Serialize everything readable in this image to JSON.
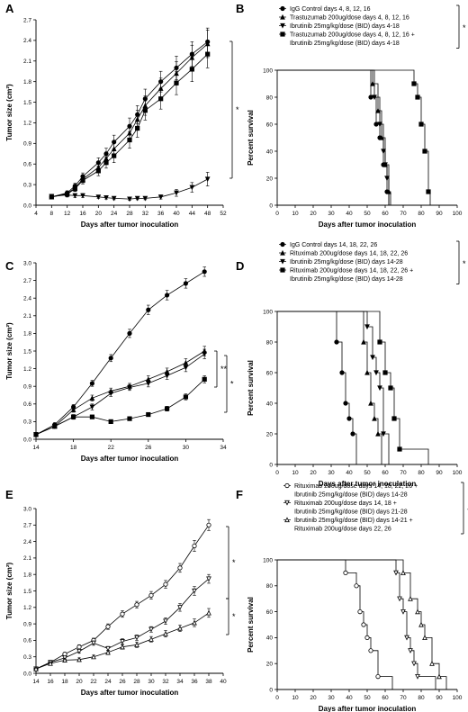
{
  "figure": {
    "panel_letters": [
      "A",
      "B",
      "C",
      "D",
      "E",
      "F"
    ]
  },
  "chart_data": [
    {
      "panel": "A",
      "type": "line",
      "xlabel": "Days after tumor inoculation",
      "ylabel": "Tumor size (cm²)",
      "xlim": [
        4,
        52
      ],
      "ylim": [
        0,
        2.7
      ],
      "xticks": [
        "4",
        "8",
        "12",
        "16",
        "20",
        "24",
        "28",
        "32",
        "36",
        "40",
        "44",
        "48",
        "52"
      ],
      "yticks": [
        "0.0",
        "0.3",
        "0.6",
        "0.9",
        "1.2",
        "1.5",
        "1.8",
        "2.1",
        "2.4",
        "2.7"
      ],
      "x": [
        8,
        12,
        14,
        16,
        20,
        22,
        24,
        28,
        30,
        32,
        36,
        40,
        44,
        48
      ],
      "series": [
        {
          "marker": "circle",
          "values": [
            0.12,
            0.18,
            0.28,
            0.42,
            0.62,
            0.75,
            0.92,
            1.15,
            1.32,
            1.55,
            1.8,
            2.0,
            2.2,
            2.38
          ],
          "err": [
            0.02,
            0.03,
            0.04,
            0.05,
            0.07,
            0.08,
            0.1,
            0.12,
            0.13,
            0.14,
            0.15,
            0.17,
            0.18,
            0.2
          ]
        },
        {
          "marker": "triangle",
          "values": [
            0.12,
            0.17,
            0.25,
            0.38,
            0.55,
            0.68,
            0.82,
            1.05,
            1.25,
            1.45,
            1.7,
            1.92,
            2.15,
            2.35
          ],
          "err": [
            0.02,
            0.03,
            0.04,
            0.05,
            0.07,
            0.08,
            0.1,
            0.12,
            0.13,
            0.14,
            0.15,
            0.17,
            0.18,
            0.2
          ]
        },
        {
          "marker": "square",
          "values": [
            0.12,
            0.16,
            0.24,
            0.36,
            0.5,
            0.62,
            0.72,
            0.95,
            1.12,
            1.38,
            1.55,
            1.78,
            1.98,
            2.2
          ],
          "err": [
            0.02,
            0.03,
            0.04,
            0.05,
            0.07,
            0.08,
            0.1,
            0.12,
            0.13,
            0.14,
            0.15,
            0.17,
            0.18,
            0.2
          ]
        },
        {
          "marker": "tri-down",
          "values": [
            0.13,
            0.15,
            0.14,
            0.14,
            0.12,
            0.11,
            0.1,
            0.09,
            0.1,
            0.1,
            0.12,
            0.18,
            0.26,
            0.38
          ],
          "err": [
            0.02,
            0.03,
            0.03,
            0.03,
            0.02,
            0.02,
            0.02,
            0.02,
            0.02,
            0.02,
            0.03,
            0.05,
            0.07,
            0.1
          ]
        }
      ],
      "annotations": [
        "*"
      ]
    },
    {
      "panel": "B",
      "type": "line",
      "subtype": "survival-step",
      "xlabel": "Days after tumor inoculation",
      "ylabel": "Percent survival",
      "xlim": [
        0,
        100
      ],
      "ylim": [
        0,
        100
      ],
      "xticks": [
        "0",
        "10",
        "20",
        "30",
        "40",
        "50",
        "60",
        "70",
        "80",
        "90",
        "100"
      ],
      "yticks": [
        "0",
        "20",
        "40",
        "60",
        "80",
        "100"
      ],
      "legend": [
        "IgG Control days 4, 8, 12, 16",
        "Trastuzumab 200ug/dose days 4, 8, 12, 16",
        "Ibrutinib 25mg/kg/dose (BID) days 4-18",
        "Trastuzumab 200ug/dose days 4, 8, 12, 16 + Ibrutinib 25mg/kg/dose (BID) days 4-18"
      ],
      "legend_annotation": "*",
      "series": [
        {
          "marker": "circle",
          "times": [
            52,
            55,
            57,
            59,
            61,
            62
          ],
          "values": [
            80,
            60,
            50,
            30,
            10,
            0
          ]
        },
        {
          "marker": "triangle",
          "times": [
            53,
            56,
            58,
            60,
            62,
            63
          ],
          "values": [
            90,
            70,
            50,
            30,
            10,
            0
          ]
        },
        {
          "marker": "tri-down",
          "times": [
            54,
            57,
            59,
            60,
            61,
            62
          ],
          "values": [
            80,
            60,
            40,
            30,
            20,
            0
          ]
        },
        {
          "marker": "square",
          "times": [
            76,
            78,
            80,
            82,
            84,
            85
          ],
          "values": [
            90,
            80,
            60,
            40,
            10,
            0
          ]
        }
      ]
    },
    {
      "panel": "C",
      "type": "line",
      "xlabel": "Days after tumor inoculation",
      "ylabel": "Tumor size (cm²)",
      "xlim": [
        14,
        34
      ],
      "ylim": [
        0,
        3.0
      ],
      "xticks": [
        "14",
        "18",
        "22",
        "26",
        "30",
        "34"
      ],
      "yticks": [
        "0.0",
        "0.3",
        "0.6",
        "0.9",
        "1.2",
        "1.5",
        "1.8",
        "2.1",
        "2.4",
        "2.7",
        "3.0"
      ],
      "x": [
        14,
        16,
        18,
        20,
        22,
        24,
        26,
        28,
        30,
        32
      ],
      "series": [
        {
          "marker": "circle",
          "values": [
            0.08,
            0.25,
            0.55,
            0.95,
            1.38,
            1.8,
            2.2,
            2.45,
            2.65,
            2.85
          ],
          "err": [
            0.02,
            0.03,
            0.04,
            0.05,
            0.06,
            0.07,
            0.08,
            0.08,
            0.08,
            0.08
          ]
        },
        {
          "marker": "triangle",
          "values": [
            0.08,
            0.22,
            0.5,
            0.7,
            0.82,
            0.9,
            1.02,
            1.15,
            1.3,
            1.5
          ],
          "err": [
            0.02,
            0.03,
            0.04,
            0.05,
            0.05,
            0.05,
            0.06,
            0.06,
            0.07,
            0.08
          ]
        },
        {
          "marker": "tri-down",
          "values": [
            0.08,
            0.22,
            0.38,
            0.55,
            0.78,
            0.88,
            0.95,
            1.08,
            1.22,
            1.45
          ],
          "err": [
            0.02,
            0.03,
            0.04,
            0.05,
            0.05,
            0.05,
            0.06,
            0.06,
            0.07,
            0.08
          ]
        },
        {
          "marker": "square",
          "values": [
            0.08,
            0.22,
            0.38,
            0.38,
            0.3,
            0.35,
            0.42,
            0.52,
            0.72,
            1.02
          ],
          "err": [
            0.02,
            0.03,
            0.03,
            0.03,
            0.03,
            0.03,
            0.03,
            0.04,
            0.05,
            0.06
          ]
        }
      ],
      "annotations": [
        "**",
        "*"
      ]
    },
    {
      "panel": "D",
      "type": "line",
      "subtype": "survival-step",
      "xlabel": "Days after tumor inoculation",
      "ylabel": "Percent survival",
      "xlim": [
        0,
        100
      ],
      "ylim": [
        0,
        100
      ],
      "xticks": [
        "0",
        "10",
        "20",
        "30",
        "40",
        "50",
        "60",
        "70",
        "80",
        "90",
        "100"
      ],
      "yticks": [
        "0",
        "20",
        "40",
        "60",
        "80",
        "100"
      ],
      "legend": [
        "IgG Control days 14, 18, 22, 26",
        "Rituximab 200ug/dose days 14, 18, 22, 26",
        "Ibrutinib 25mg/kg/dose (BID) days 14-28",
        "Rituximab 200ug/dose days 14, 18, 22, 26 + Ibrutinib 25mg/kg/dose (BID) days 14-28"
      ],
      "legend_annotation": "*",
      "series": [
        {
          "marker": "circle",
          "times": [
            33,
            36,
            38,
            40,
            42,
            44
          ],
          "values": [
            80,
            60,
            40,
            30,
            20,
            0
          ]
        },
        {
          "marker": "triangle",
          "times": [
            48,
            50,
            52,
            54,
            56,
            58
          ],
          "values": [
            80,
            60,
            40,
            30,
            20,
            0
          ]
        },
        {
          "marker": "tri-down",
          "times": [
            50,
            53,
            55,
            57,
            59,
            62
          ],
          "values": [
            90,
            70,
            60,
            50,
            20,
            0
          ]
        },
        {
          "marker": "square",
          "times": [
            57,
            60,
            63,
            65,
            68,
            84
          ],
          "values": [
            80,
            60,
            50,
            30,
            10,
            0
          ]
        }
      ]
    },
    {
      "panel": "E",
      "type": "line",
      "xlabel": "Days after tumor inoculation",
      "ylabel": "Tumor size (cm²)",
      "xlim": [
        14,
        40
      ],
      "ylim": [
        0,
        3.0
      ],
      "xticks": [
        "14",
        "16",
        "18",
        "20",
        "22",
        "24",
        "26",
        "28",
        "30",
        "32",
        "34",
        "36",
        "38",
        "40"
      ],
      "yticks": [
        "0.0",
        "0.3",
        "0.6",
        "0.9",
        "1.2",
        "1.5",
        "1.8",
        "2.1",
        "2.4",
        "2.7",
        "3.0"
      ],
      "x": [
        14,
        16,
        18,
        20,
        22,
        24,
        26,
        28,
        30,
        32,
        34,
        36,
        38
      ],
      "series": [
        {
          "marker": "circle-open",
          "values": [
            0.08,
            0.2,
            0.35,
            0.48,
            0.6,
            0.85,
            1.08,
            1.25,
            1.42,
            1.62,
            1.92,
            2.32,
            2.7
          ],
          "err": [
            0.01,
            0.02,
            0.03,
            0.04,
            0.04,
            0.05,
            0.06,
            0.06,
            0.07,
            0.07,
            0.08,
            0.1,
            0.1
          ]
        },
        {
          "marker": "tri-down-open",
          "values": [
            0.08,
            0.2,
            0.28,
            0.4,
            0.55,
            0.45,
            0.58,
            0.65,
            0.8,
            0.95,
            1.2,
            1.5,
            1.72
          ],
          "err": [
            0.01,
            0.02,
            0.03,
            0.03,
            0.04,
            0.04,
            0.05,
            0.05,
            0.05,
            0.06,
            0.07,
            0.08,
            0.08
          ]
        },
        {
          "marker": "triangle-open",
          "values": [
            0.08,
            0.18,
            0.24,
            0.25,
            0.3,
            0.38,
            0.48,
            0.52,
            0.62,
            0.72,
            0.82,
            0.92,
            1.1
          ],
          "err": [
            0.01,
            0.02,
            0.02,
            0.03,
            0.03,
            0.04,
            0.04,
            0.05,
            0.05,
            0.06,
            0.06,
            0.07,
            0.08
          ]
        }
      ],
      "annotations": [
        "*",
        "*"
      ]
    },
    {
      "panel": "F",
      "type": "line",
      "subtype": "survival-step",
      "xlabel": "Days after tumor inoculation",
      "ylabel": "Percent survival",
      "xlim": [
        0,
        100
      ],
      "ylim": [
        0,
        100
      ],
      "xticks": [
        "0",
        "10",
        "20",
        "30",
        "40",
        "50",
        "60",
        "70",
        "80",
        "90",
        "100"
      ],
      "yticks": [
        "0",
        "20",
        "40",
        "60",
        "80",
        "100"
      ],
      "legend": [
        "Rituximab 200ug/dose days 14, 18, 22, 26 + Ibrutinib 25mg/kg/dose (BID) days 14-28",
        "Rituximab 200ug/dose days 14, 18 + Ibrutinib 25mg/kg/dose (BID) days 21-28",
        "Ibrutinib 25mg/kg/dose (BID) days 14-21 + Rituximab 200ug/dose days 22, 26"
      ],
      "legend_annotation": "-",
      "series": [
        {
          "marker": "circle-open",
          "times": [
            38,
            44,
            46,
            48,
            50,
            52,
            56,
            64
          ],
          "values": [
            90,
            80,
            60,
            50,
            40,
            30,
            10,
            0
          ]
        },
        {
          "marker": "tri-down-open",
          "times": [
            66,
            68,
            70,
            72,
            74,
            76,
            78,
            88
          ],
          "values": [
            90,
            70,
            60,
            40,
            30,
            20,
            10,
            0
          ]
        },
        {
          "marker": "triangle-open",
          "times": [
            70,
            74,
            78,
            80,
            82,
            86,
            90,
            94
          ],
          "values": [
            90,
            70,
            60,
            50,
            40,
            20,
            10,
            0
          ]
        }
      ]
    }
  ]
}
